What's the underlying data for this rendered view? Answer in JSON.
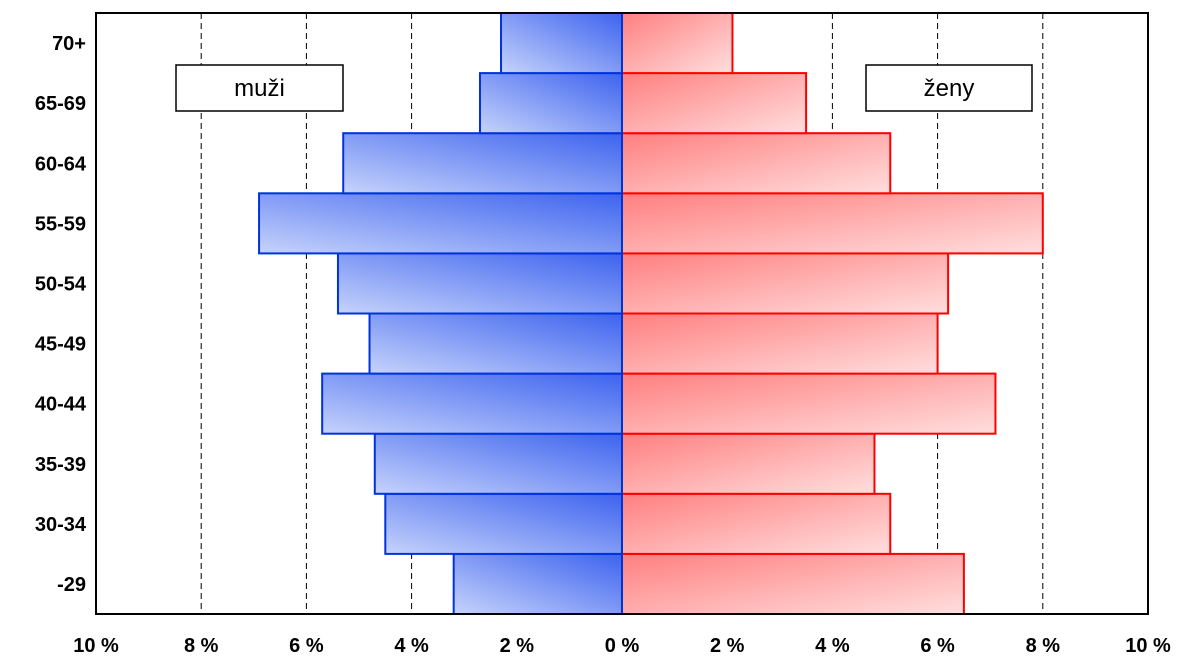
{
  "chart_data": {
    "type": "bar",
    "orientation": "horizontal",
    "layout": "population-pyramid",
    "categories": [
      "-29",
      "30-34",
      "35-39",
      "40-44",
      "45-49",
      "50-54",
      "55-59",
      "60-64",
      "65-69",
      "70+"
    ],
    "series": [
      {
        "name": "muži",
        "side": "left",
        "values": [
          3.2,
          4.5,
          4.7,
          5.7,
          4.8,
          5.4,
          6.9,
          5.3,
          2.7,
          2.3
        ]
      },
      {
        "name": "ženy",
        "side": "right",
        "values": [
          6.5,
          5.1,
          4.8,
          7.1,
          6.0,
          6.2,
          8.0,
          5.1,
          3.5,
          2.1
        ]
      }
    ],
    "xlim": [
      -10,
      10
    ],
    "x_tick_values": [
      -10,
      -8,
      -6,
      -4,
      -2,
      0,
      2,
      4,
      6,
      8,
      10
    ],
    "x_tick_labels": [
      "10 %",
      "8 %",
      "6 %",
      "4 %",
      "2 %",
      "0 %",
      "2 %",
      "4 %",
      "6 %",
      "8 %",
      "10 %"
    ],
    "grid": {
      "vertical": true,
      "style": "dashed"
    },
    "legend": [
      {
        "label": "muži",
        "placement": "top-left"
      },
      {
        "label": "ženy",
        "placement": "top-right"
      }
    ],
    "colors": {
      "men": "#0033dd",
      "men_fill": "#7f9cf5",
      "women": "#ff0000",
      "women_fill": "#fca5a5"
    },
    "title": "",
    "xlabel": "",
    "ylabel": ""
  }
}
